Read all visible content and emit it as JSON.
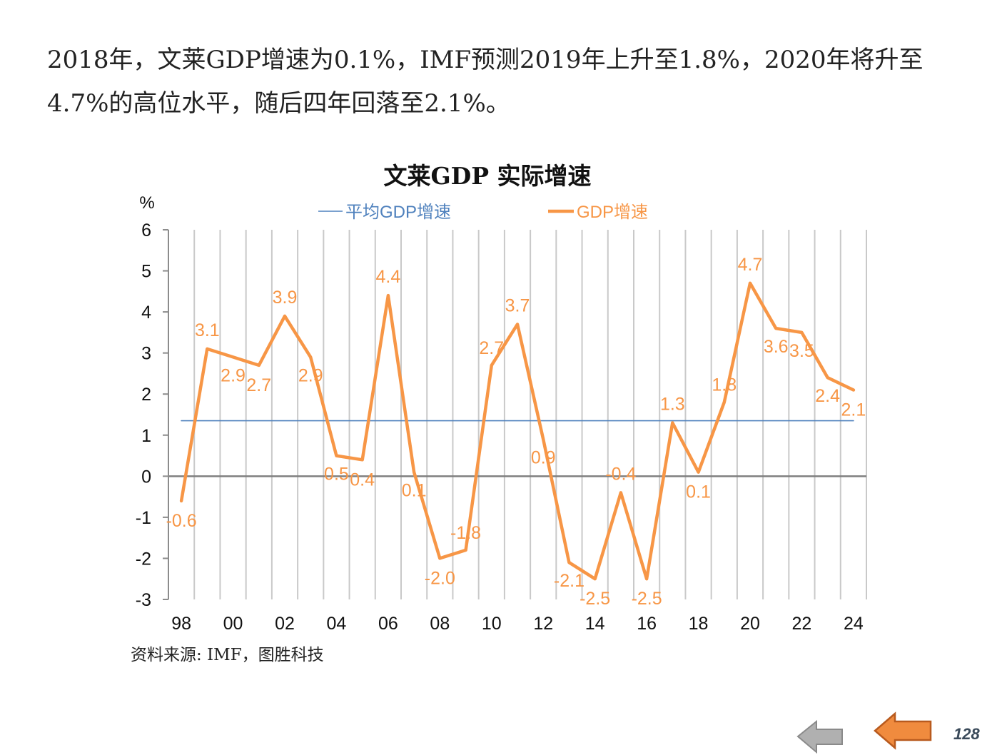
{
  "intro": {
    "text": "2018年，文莱GDP增速为0.1%，IMF预测2019年上升至1.8%，2020年将升至4.7%的高位水平，随后四年回落至2.1%。"
  },
  "chart_data": {
    "type": "line",
    "title": "文莱GDP 实际增速",
    "ylabel": "%",
    "xlabel": "",
    "ylim": [
      -3,
      6
    ],
    "yticks": [
      "6",
      "5",
      "4",
      "3",
      "2",
      "1",
      "0",
      "-1",
      "-2",
      "-3"
    ],
    "x": [
      "98",
      "99",
      "00",
      "01",
      "02",
      "03",
      "04",
      "05",
      "06",
      "07",
      "08",
      "09",
      "10",
      "11",
      "12",
      "13",
      "14",
      "15",
      "16",
      "17",
      "18",
      "19",
      "20",
      "21",
      "22",
      "23",
      "24"
    ],
    "xtick_labels": [
      "98",
      "00",
      "02",
      "04",
      "06",
      "08",
      "10",
      "12",
      "14",
      "16",
      "18",
      "20",
      "22",
      "24"
    ],
    "grid": "vertical",
    "legend_position": "top",
    "series": [
      {
        "name": "平均GDP增速",
        "color": "#4f81bd",
        "values": [
          1.35,
          1.35,
          1.35,
          1.35,
          1.35,
          1.35,
          1.35,
          1.35,
          1.35,
          1.35,
          1.35,
          1.35,
          1.35,
          1.35,
          1.35,
          1.35,
          1.35,
          1.35,
          1.35,
          1.35,
          1.35,
          1.35,
          1.35,
          1.35,
          1.35,
          1.35,
          1.35
        ]
      },
      {
        "name": "GDP增速",
        "color": "#f79646",
        "values": [
          -0.6,
          3.1,
          2.9,
          2.7,
          3.9,
          2.9,
          0.5,
          0.4,
          4.4,
          0.1,
          -2.0,
          -1.8,
          2.7,
          3.7,
          0.9,
          -2.1,
          -2.5,
          -0.4,
          -2.5,
          1.3,
          0.1,
          1.8,
          4.7,
          3.6,
          3.5,
          2.4,
          2.1
        ],
        "data_labels": [
          "-0.6",
          "3.1",
          "2.9",
          "2.7",
          "3.9",
          "2.9",
          "0.5",
          "0.4",
          "4.4",
          "0.1",
          "-2.0",
          "-1.8",
          "2.7",
          "3.7",
          "0.9",
          "-2.1",
          "-2.5",
          "-0.4",
          "-2.5",
          "1.3",
          "0.1",
          "1.8",
          "4.7",
          "3.6",
          "3.5",
          "2.4",
          "2.1"
        ]
      }
    ]
  },
  "source": {
    "text": "资料来源: IMF，图胜科技"
  },
  "footer": {
    "page_number": "128",
    "prev_icon": "left-arrow-grey-icon",
    "next_icon": "left-arrow-orange-icon"
  }
}
